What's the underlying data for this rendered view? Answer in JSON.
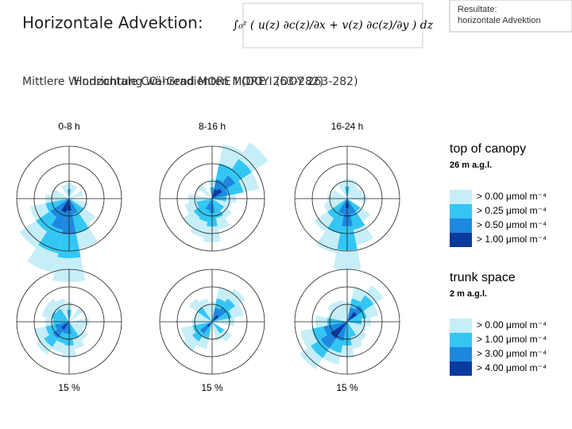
{
  "header": {
    "title": "Horizontale Advektion:",
    "formula": "∫₀ᶻ ( u(z) ∂c(z)/∂x + v(z) ∂c(z)/∂y ) dz",
    "badge": [
      "Resultate:",
      "horizontale Advektion"
    ],
    "subtitle_a": "Mittlere Windrichtung während MORE I (DOY 263-282)",
    "subtitle_b": "Horizontale CO₂-Gradienten MORE I (DOY 263-282)"
  },
  "panels": {
    "columns": [
      "0-8 h",
      "8-16 h",
      "16-24 h"
    ],
    "scale": [
      "15 %",
      "15 %",
      "15 %"
    ]
  },
  "legend": [
    {
      "title": "top of canopy",
      "height": "26 m a.g.l.",
      "items": [
        "> 0.00 μmol m⁻⁴",
        "> 0.25 μmol m⁻⁴",
        "> 0.50 μmol m⁻⁴",
        "> 1.00 μmol m⁻⁴"
      ]
    },
    {
      "title": "trunk space",
      "height": "2 m a.g.l.",
      "items": [
        "> 0.00 μmol m⁻⁴",
        "> 1.00 μmol m⁻⁴",
        "> 3.00 μmol m⁻⁴",
        "> 4.00 μmol m⁻⁴"
      ]
    }
  ]
}
